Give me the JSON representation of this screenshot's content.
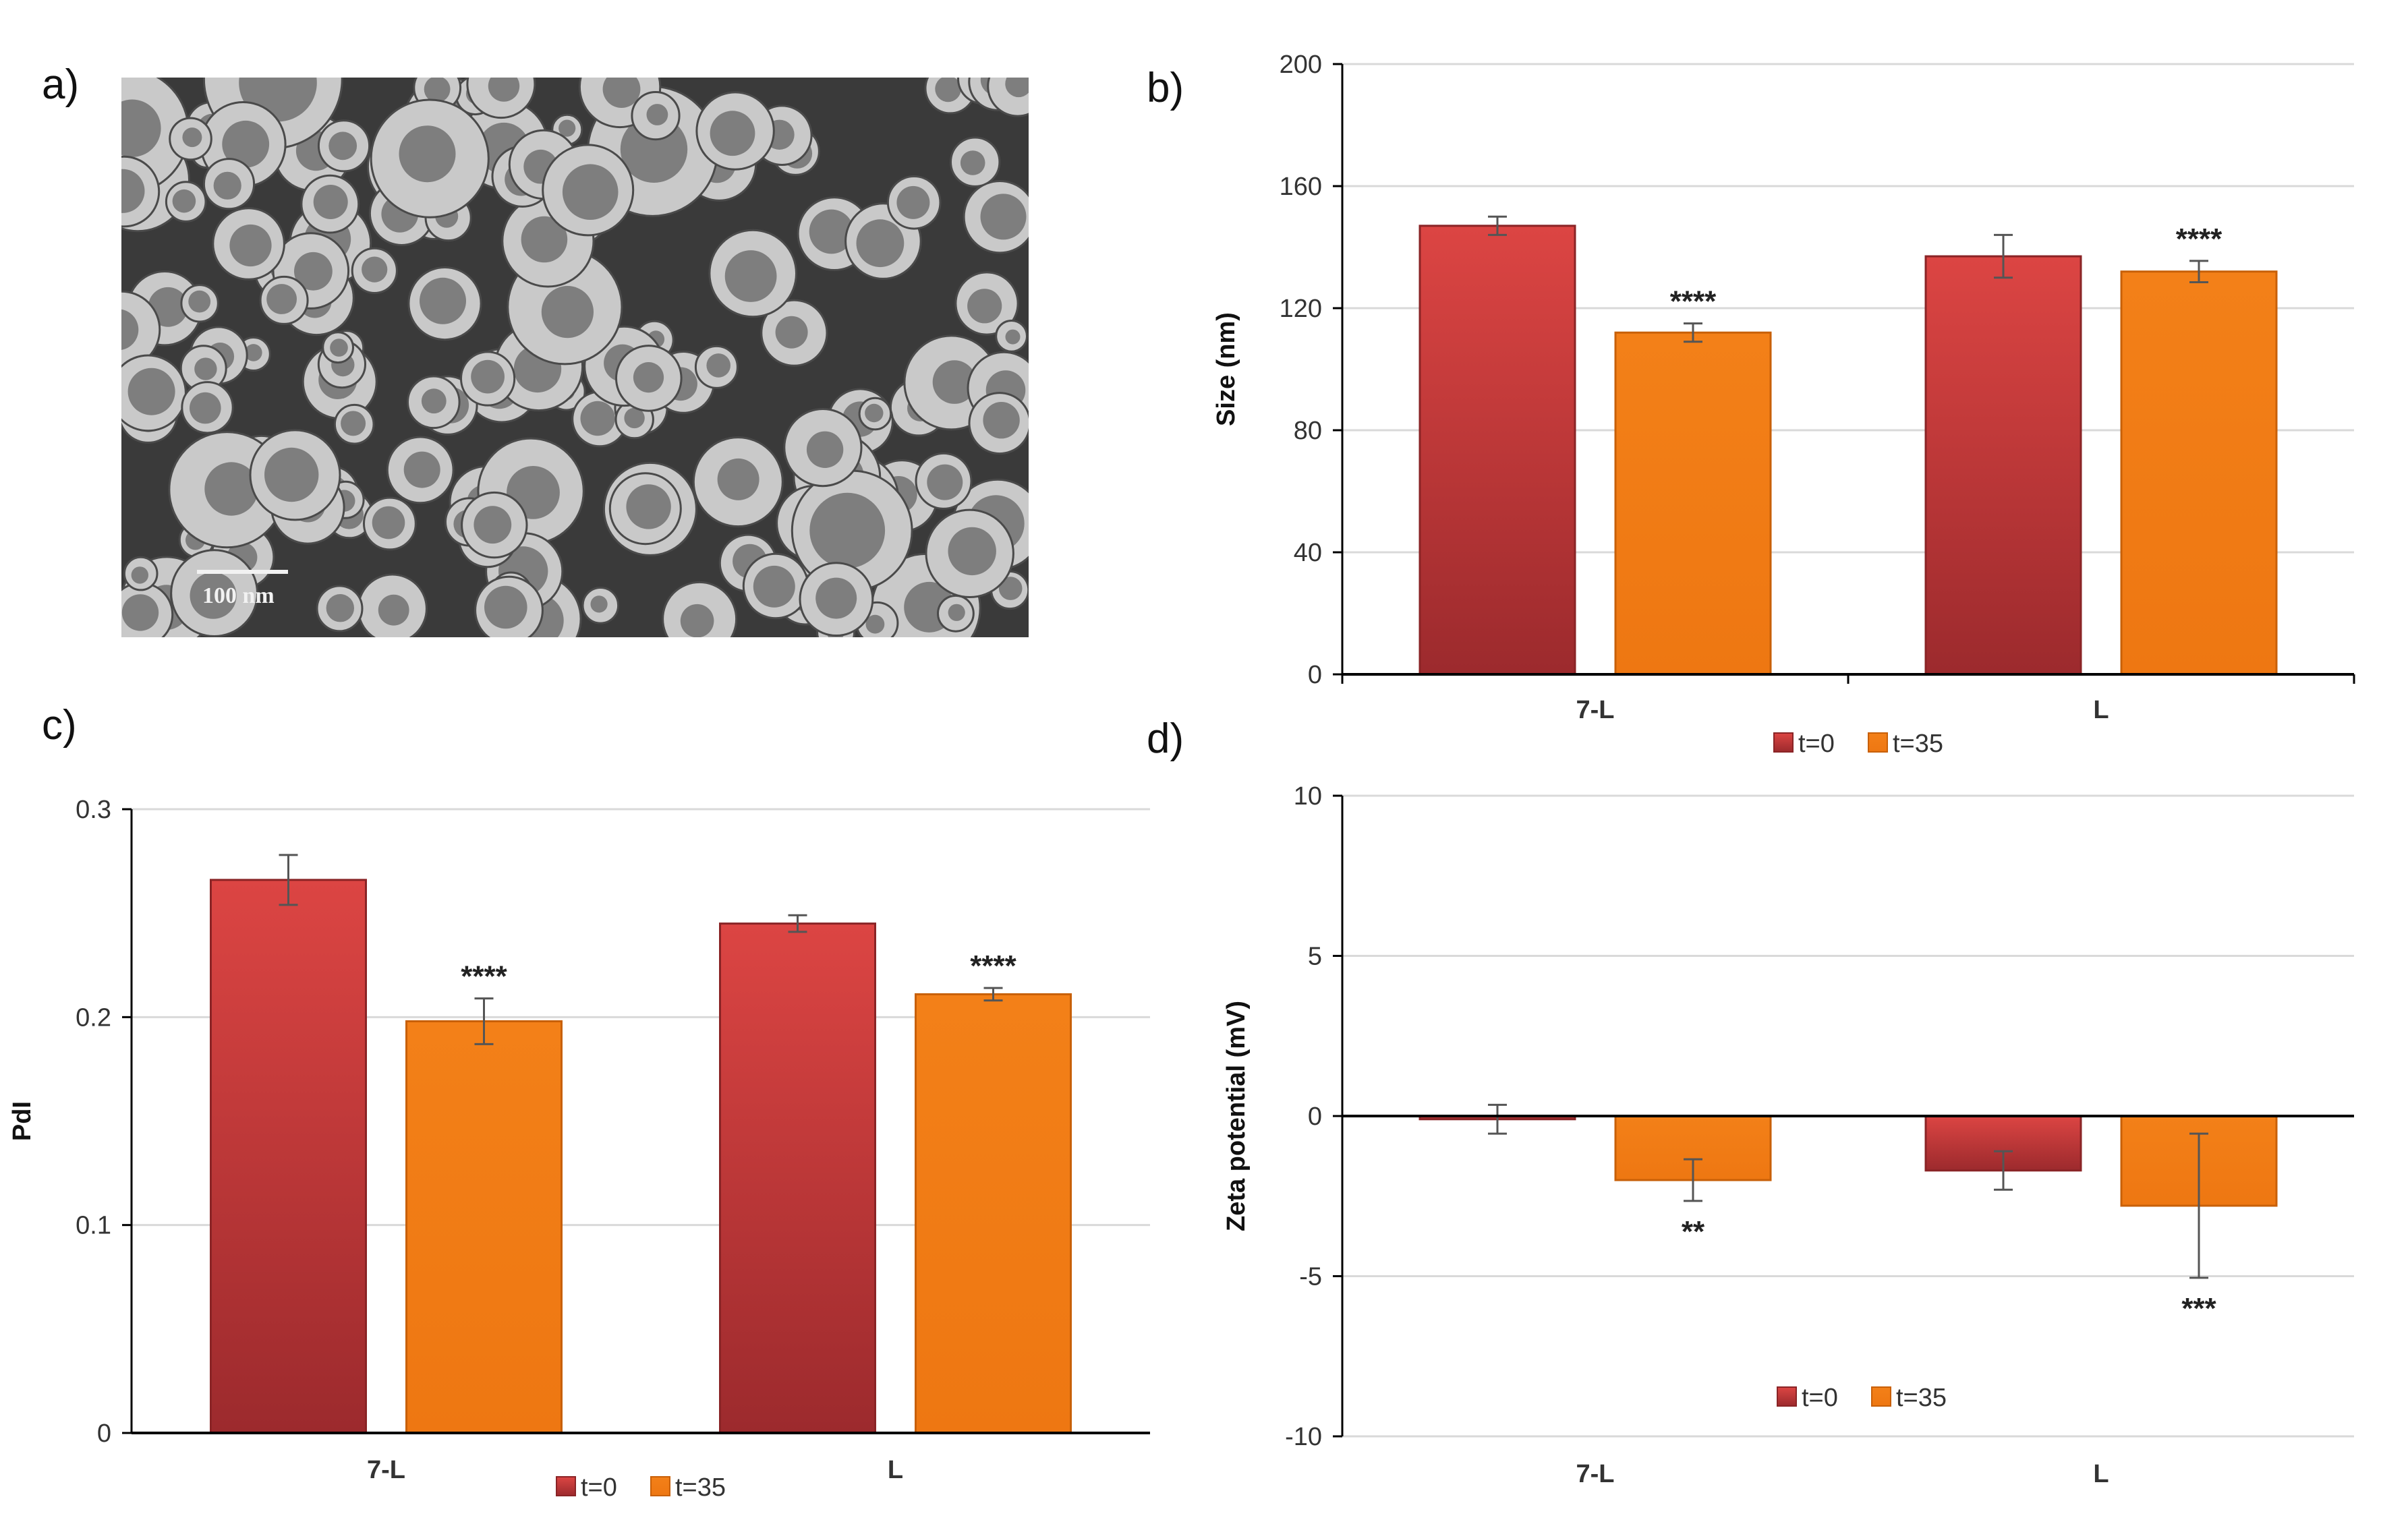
{
  "panels": {
    "a": "a)",
    "b": "b)",
    "c": "c)",
    "d": "d)"
  },
  "micrograph": {
    "scale_bar_label": "100 nm"
  },
  "colors": {
    "t0_top": "#dc4543",
    "t0_bottom": "#9c2a2d",
    "t35": "#f07c17",
    "t35_dark": "#c86008",
    "grid": "#d9d9d9",
    "axis": "#000000"
  },
  "chart_data": [
    {
      "id": "b",
      "type": "bar",
      "categories": [
        "7-L",
        "L"
      ],
      "series": [
        {
          "name": "t=0",
          "values": [
            147,
            137
          ],
          "errors": [
            3,
            7
          ]
        },
        {
          "name": "t=35",
          "values": [
            112,
            132
          ],
          "errors": [
            3,
            3.5
          ]
        }
      ],
      "annotations": [
        {
          "series": "t=35",
          "category": "7-L",
          "text": "****"
        },
        {
          "series": "t=35",
          "category": "L",
          "text": "****"
        }
      ],
      "ylabel": "Size (nm)",
      "ylim": [
        0,
        200
      ],
      "yticks": [
        0,
        40,
        80,
        120,
        160,
        200
      ],
      "ytick_labels": [
        "0",
        "40",
        "80",
        "120",
        "160",
        "200"
      ],
      "legend": [
        "t=0",
        "t=35"
      ],
      "legend_position": "bottom",
      "grid": true
    },
    {
      "id": "c",
      "type": "bar",
      "categories": [
        "7-L",
        "L"
      ],
      "series": [
        {
          "name": "t=0",
          "values": [
            0.266,
            0.245
          ],
          "errors": [
            0.012,
            0.004
          ]
        },
        {
          "name": "t=35",
          "values": [
            0.198,
            0.211
          ],
          "errors": [
            0.011,
            0.003
          ]
        }
      ],
      "annotations": [
        {
          "series": "t=35",
          "category": "7-L",
          "text": "****"
        },
        {
          "series": "t=35",
          "category": "L",
          "text": "****"
        }
      ],
      "ylabel": "PdI",
      "ylim": [
        0,
        0.3
      ],
      "yticks": [
        0,
        0.1,
        0.2,
        0.3
      ],
      "ytick_labels": [
        "0",
        "0.1",
        "0.2",
        "0.3"
      ],
      "legend": [
        "t=0",
        "t=35"
      ],
      "legend_position": "bottom",
      "grid": true
    },
    {
      "id": "d",
      "type": "bar",
      "categories": [
        "7-L",
        "L"
      ],
      "series": [
        {
          "name": "t=0",
          "values": [
            -0.1,
            -1.7
          ],
          "errors": [
            0.45,
            0.6
          ]
        },
        {
          "name": "t=35",
          "values": [
            -2.0,
            -2.8
          ],
          "errors": [
            0.65,
            2.25
          ]
        }
      ],
      "annotations": [
        {
          "series": "t=35",
          "category": "7-L",
          "text": "**"
        },
        {
          "series": "t=35",
          "category": "L",
          "text": "***"
        }
      ],
      "ylabel": "Zeta potential (mV)",
      "ylim": [
        -10,
        10
      ],
      "yticks": [
        -10,
        -5,
        0,
        5,
        10
      ],
      "ytick_labels": [
        "-10",
        "-5",
        "0",
        "5",
        "10"
      ],
      "legend": [
        "t=0",
        "t=35"
      ],
      "legend_position": "bottom",
      "grid": true
    }
  ]
}
